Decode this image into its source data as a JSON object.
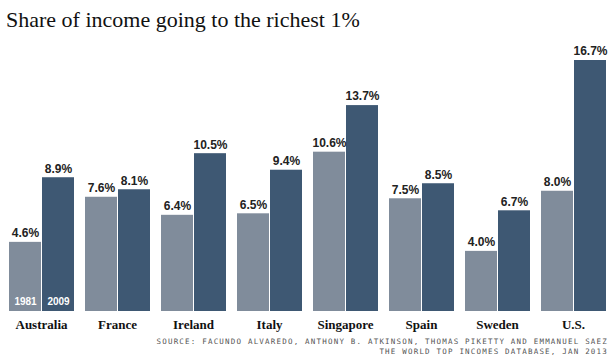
{
  "chart_data": {
    "type": "bar",
    "title": "Share of income going to the richest 1%",
    "source": [
      "SOURCE: FACUNDO ALVAREDO, ANTHONY B. ATKINSON, THOMAS PIKETTY AND EMMANUEL SAEZ",
      "THE WORLD TOP INCOMES DATABASE, JAN 2013"
    ],
    "categories": [
      "Australia",
      "France",
      "Ireland",
      "Italy",
      "Singapore",
      "Spain",
      "Sweden",
      "U.S."
    ],
    "series": [
      {
        "name": "1981",
        "color": "#808c9b",
        "values": [
          4.6,
          7.6,
          6.4,
          6.5,
          10.6,
          7.5,
          4.0,
          8.0
        ],
        "value_labels": [
          "4.6%",
          "7.6%",
          "6.4%",
          "6.5%",
          "10.6%",
          "7.5%",
          "4.0%",
          "8.0%"
        ]
      },
      {
        "name": "2009",
        "color": "#3e5873",
        "values": [
          8.9,
          8.1,
          10.5,
          9.4,
          13.7,
          8.5,
          6.7,
          16.7
        ],
        "value_labels": [
          "8.9%",
          "8.1%",
          "10.5%",
          "9.4%",
          "13.7%",
          "8.5%",
          "6.7%",
          "16.7%"
        ]
      }
    ],
    "ylim": [
      0,
      16.7
    ],
    "data_labels": true,
    "tick_labels": "x",
    "grid": false
  }
}
